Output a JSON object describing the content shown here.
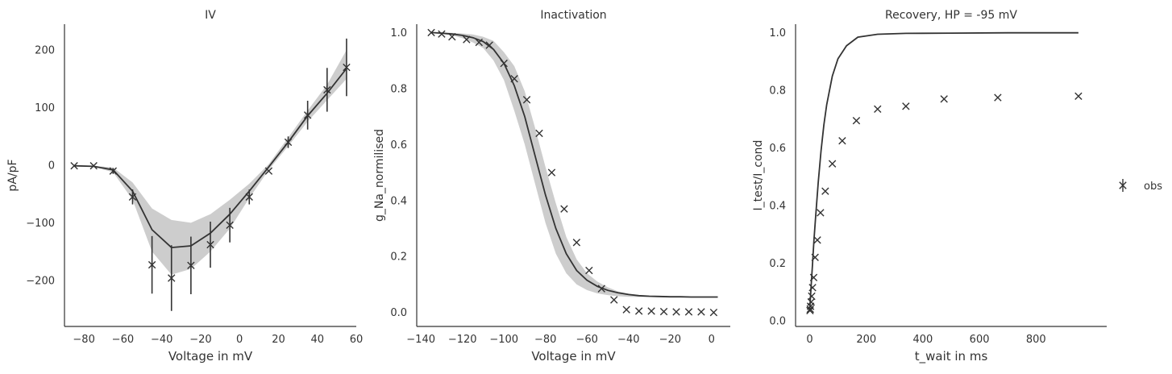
{
  "chart_data": [
    {
      "type": "line",
      "title": "IV",
      "xlabel": "Voltage in mV",
      "ylabel": "pA/pF",
      "xlim": [
        -90,
        60
      ],
      "ylim": [
        -280,
        245
      ],
      "xticks": [
        -80,
        -60,
        -40,
        -20,
        0,
        20,
        40,
        60
      ],
      "xtick_labels": [
        "−80",
        "−60",
        "−40",
        "−20",
        "0",
        "20",
        "40",
        "60"
      ],
      "yticks": [
        -200,
        -100,
        0,
        100,
        200
      ],
      "ytick_labels": [
        "−200",
        "−100",
        "0",
        "100",
        "200"
      ],
      "grid": false,
      "obs": {
        "x": [
          -85,
          -75,
          -65,
          -55,
          -45,
          -35,
          -25,
          -15,
          -5,
          5,
          15,
          25,
          35,
          45,
          55
        ],
        "y": [
          -1,
          -1,
          -10,
          -55,
          -173,
          -196,
          -174,
          -138,
          -104,
          -55,
          -10,
          40,
          87,
          131,
          170
        ],
        "err": [
          2,
          2,
          5,
          13,
          50,
          57,
          50,
          40,
          30,
          13,
          3,
          10,
          25,
          38,
          50
        ]
      },
      "model": {
        "x": [
          -85,
          -75,
          -65,
          -55,
          -45,
          -35,
          -25,
          -15,
          -5,
          5,
          15,
          25,
          35,
          45,
          55
        ],
        "y": [
          -1,
          -2,
          -8,
          -45,
          -112,
          -143,
          -140,
          -118,
          -85,
          -45,
          -3,
          40,
          86,
          125,
          168
        ]
      },
      "band_upper": [
        -1,
        -1,
        -4,
        -30,
        -75,
        -95,
        -100,
        -85,
        -60,
        -32,
        2,
        48,
        95,
        140,
        200
      ],
      "band_lower": [
        -1,
        -3,
        -12,
        -60,
        -150,
        -190,
        -180,
        -150,
        -110,
        -57,
        -8,
        33,
        76,
        113,
        150
      ]
    },
    {
      "type": "line",
      "title": "Inactivation",
      "xlabel": "Voltage in mV",
      "ylabel": "g_Na_normilised",
      "xlim": [
        -142,
        9
      ],
      "ylim": [
        -0.05,
        1.03
      ],
      "xticks": [
        -140,
        -120,
        -100,
        -80,
        -60,
        -40,
        -20,
        0
      ],
      "xtick_labels": [
        "−140",
        "−120",
        "−100",
        "−80",
        "−60",
        "−40",
        "−20",
        "0"
      ],
      "yticks": [
        0.0,
        0.2,
        0.4,
        0.6,
        0.8,
        1.0
      ],
      "ytick_labels": [
        "0.0",
        "0.2",
        "0.4",
        "0.6",
        "0.8",
        "1.0"
      ],
      "grid": false,
      "obs": {
        "x": [
          -135,
          -130,
          -125,
          -118,
          -112,
          -107,
          -100,
          -95,
          -89,
          -83,
          -77,
          -71,
          -65,
          -59,
          -53,
          -47,
          -41,
          -35,
          -29,
          -23,
          -17,
          -11,
          -5,
          1
        ],
        "y": [
          1.0,
          0.995,
          0.985,
          0.975,
          0.965,
          0.955,
          0.89,
          0.835,
          0.76,
          0.64,
          0.5,
          0.37,
          0.25,
          0.15,
          0.085,
          0.045,
          0.01,
          0.005,
          0.005,
          0.003,
          0.002,
          0.002,
          0.002,
          0.0
        ]
      },
      "model": {
        "x": [
          -135,
          -130,
          -125,
          -120,
          -115,
          -110,
          -105,
          -100,
          -95,
          -90,
          -85,
          -80,
          -75,
          -70,
          -65,
          -60,
          -55,
          -50,
          -45,
          -40,
          -35,
          -30,
          -25,
          -20,
          -15,
          -10,
          -5,
          0,
          3
        ],
        "y": [
          1.0,
          0.998,
          0.995,
          0.99,
          0.982,
          0.968,
          0.94,
          0.89,
          0.81,
          0.7,
          0.56,
          0.42,
          0.3,
          0.21,
          0.15,
          0.115,
          0.093,
          0.079,
          0.07,
          0.064,
          0.06,
          0.058,
          0.057,
          0.056,
          0.056,
          0.055,
          0.055,
          0.055,
          0.055
        ]
      },
      "band_upper": [
        1.0,
        1.0,
        0.999,
        0.997,
        0.993,
        0.985,
        0.97,
        0.93,
        0.88,
        0.79,
        0.66,
        0.52,
        0.39,
        0.27,
        0.19,
        0.14,
        0.11,
        0.09,
        0.075,
        0.067,
        0.062,
        0.059,
        0.057,
        0.056,
        0.056,
        0.056,
        0.056,
        0.056,
        0.056
      ],
      "band_lower": [
        0.998,
        0.995,
        0.99,
        0.98,
        0.965,
        0.945,
        0.9,
        0.83,
        0.72,
        0.6,
        0.46,
        0.32,
        0.21,
        0.14,
        0.1,
        0.08,
        0.068,
        0.062,
        0.058,
        0.056,
        0.055,
        0.055,
        0.054,
        0.054,
        0.054,
        0.054,
        0.054,
        0.054,
        0.054
      ]
    },
    {
      "type": "line",
      "title": "Recovery, HP = -95 mV",
      "xlabel": "t_wait in ms",
      "ylabel": "I_test/I_cond",
      "xlim": [
        -50,
        1050
      ],
      "ylim": [
        -0.02,
        1.03
      ],
      "xticks": [
        0,
        200,
        400,
        600,
        800
      ],
      "xtick_labels": [
        "0",
        "200",
        "400",
        "600",
        "800"
      ],
      "yticks": [
        0.0,
        0.2,
        0.4,
        0.6,
        0.8,
        1.0
      ],
      "ytick_labels": [
        "0.0",
        "0.2",
        "0.4",
        "0.6",
        "0.8",
        "1.0"
      ],
      "grid": false,
      "obs": {
        "x": [
          1,
          2,
          3,
          5,
          7,
          10,
          14,
          19,
          27,
          38,
          55,
          80,
          115,
          165,
          240,
          340,
          475,
          665,
          950
        ],
        "y": [
          0.035,
          0.04,
          0.05,
          0.065,
          0.085,
          0.115,
          0.15,
          0.22,
          0.28,
          0.375,
          0.45,
          0.545,
          0.625,
          0.695,
          0.735,
          0.745,
          0.77,
          0.775,
          0.78
        ]
      },
      "model": {
        "x": [
          0,
          5,
          10,
          15,
          20,
          30,
          40,
          50,
          60,
          80,
          100,
          130,
          170,
          240,
          340,
          500,
          700,
          950
        ],
        "y": [
          0.035,
          0.12,
          0.2,
          0.28,
          0.35,
          0.48,
          0.59,
          0.68,
          0.75,
          0.85,
          0.91,
          0.955,
          0.985,
          0.995,
          0.998,
          0.999,
          1.0,
          1.0
        ]
      }
    }
  ],
  "legend": {
    "entries": [
      {
        "label": "obs"
      }
    ],
    "placement": "right"
  },
  "colors": {
    "line": "#333333",
    "band": "#c8c8c8",
    "marker": "#333333",
    "axis": "#333333"
  }
}
